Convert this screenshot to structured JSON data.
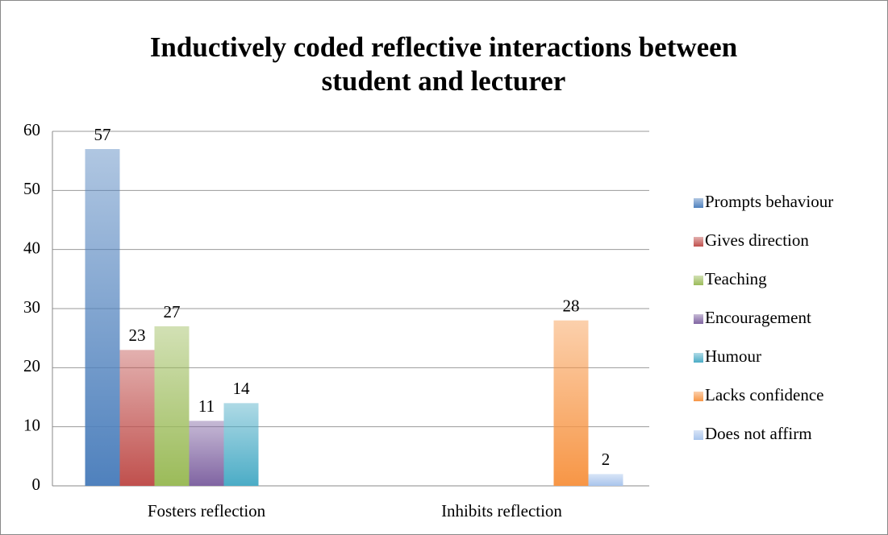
{
  "chart_data": {
    "type": "bar",
    "title": "Inductively coded reflective interactions between student and lecturer",
    "categories": [
      "Fosters reflection",
      "Inhibits reflection"
    ],
    "series": [
      {
        "name": "Prompts behaviour",
        "color": "#4f81bd",
        "values": [
          57,
          null
        ]
      },
      {
        "name": "Gives direction",
        "color": "#c0504d",
        "values": [
          23,
          null
        ]
      },
      {
        "name": "Teaching",
        "color": "#9bbb59",
        "values": [
          27,
          null
        ]
      },
      {
        "name": "Encouragement",
        "color": "#8064a2",
        "values": [
          11,
          null
        ]
      },
      {
        "name": "Humour",
        "color": "#4bacc6",
        "values": [
          14,
          null
        ]
      },
      {
        "name": "Lacks confidence",
        "color": "#f79646",
        "values": [
          null,
          28
        ]
      },
      {
        "name": "Does not affirm",
        "color": "#a8c4ec",
        "values": [
          null,
          2
        ]
      }
    ],
    "ylim": [
      0,
      60
    ],
    "yticks": [
      0,
      10,
      20,
      30,
      40,
      50,
      60
    ],
    "grid": true,
    "legend": "right"
  }
}
